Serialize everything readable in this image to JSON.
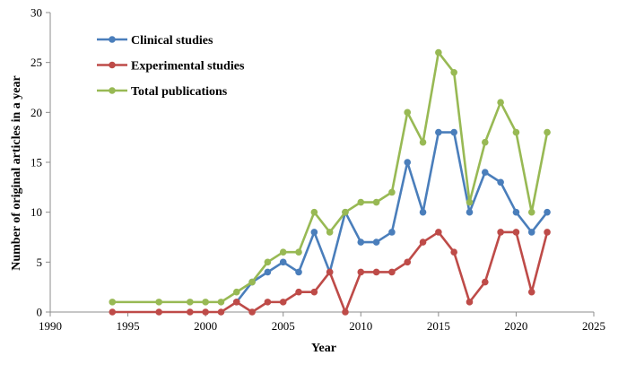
{
  "chart_data": {
    "type": "line",
    "title": "",
    "xlabel": "Year",
    "ylabel": "Number of original articles in a year",
    "xlim": [
      1990,
      2025
    ],
    "ylim": [
      0,
      30
    ],
    "xticks": [
      1990,
      1995,
      2000,
      2005,
      2010,
      2015,
      2020,
      2025
    ],
    "yticks": [
      0,
      5,
      10,
      15,
      20,
      25,
      30
    ],
    "grid": false,
    "legend_position": "top-left",
    "series": [
      {
        "name": "Clinical studies",
        "color": "#4a7ebb",
        "points": [
          [
            2002,
            1
          ],
          [
            2003,
            3
          ],
          [
            2004,
            4
          ],
          [
            2005,
            5
          ],
          [
            2006,
            4
          ],
          [
            2007,
            8
          ],
          [
            2008,
            4
          ],
          [
            2009,
            10
          ],
          [
            2010,
            7
          ],
          [
            2011,
            7
          ],
          [
            2012,
            8
          ],
          [
            2013,
            15
          ],
          [
            2014,
            10
          ],
          [
            2015,
            18
          ],
          [
            2016,
            18
          ],
          [
            2017,
            10
          ],
          [
            2018,
            14
          ],
          [
            2019,
            13
          ],
          [
            2020,
            10
          ],
          [
            2021,
            8
          ],
          [
            2022,
            10
          ]
        ]
      },
      {
        "name": "Experimental studies",
        "color": "#be4b48",
        "points": [
          [
            1994,
            0
          ],
          [
            1997,
            0
          ],
          [
            1999,
            0
          ],
          [
            2000,
            0
          ],
          [
            2001,
            0
          ],
          [
            2002,
            1
          ],
          [
            2003,
            0
          ],
          [
            2004,
            1
          ],
          [
            2005,
            1
          ],
          [
            2006,
            2
          ],
          [
            2007,
            2
          ],
          [
            2008,
            4
          ],
          [
            2009,
            0
          ],
          [
            2010,
            4
          ],
          [
            2011,
            4
          ],
          [
            2012,
            4
          ],
          [
            2013,
            5
          ],
          [
            2014,
            7
          ],
          [
            2015,
            8
          ],
          [
            2016,
            6
          ],
          [
            2017,
            1
          ],
          [
            2018,
            3
          ],
          [
            2019,
            8
          ],
          [
            2020,
            8
          ],
          [
            2021,
            2
          ],
          [
            2022,
            8
          ]
        ]
      },
      {
        "name": "Total publications",
        "color": "#98b954",
        "points": [
          [
            1994,
            1
          ],
          [
            1997,
            1
          ],
          [
            1999,
            1
          ],
          [
            2000,
            1
          ],
          [
            2001,
            1
          ],
          [
            2002,
            2
          ],
          [
            2003,
            3
          ],
          [
            2004,
            5
          ],
          [
            2005,
            6
          ],
          [
            2006,
            6
          ],
          [
            2007,
            10
          ],
          [
            2008,
            8
          ],
          [
            2009,
            10
          ],
          [
            2010,
            11
          ],
          [
            2011,
            11
          ],
          [
            2012,
            12
          ],
          [
            2013,
            20
          ],
          [
            2014,
            17
          ],
          [
            2015,
            26
          ],
          [
            2016,
            24
          ],
          [
            2017,
            11
          ],
          [
            2018,
            17
          ],
          [
            2019,
            21
          ],
          [
            2020,
            18
          ],
          [
            2021,
            10
          ],
          [
            2022,
            18
          ]
        ]
      }
    ]
  }
}
